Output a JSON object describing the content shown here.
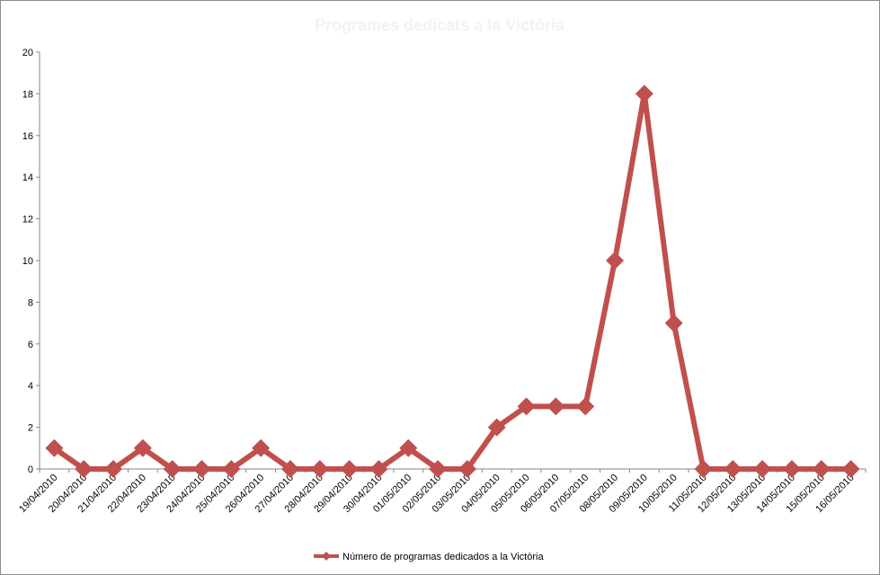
{
  "chart_data": {
    "type": "line",
    "title": "Programes dedicats a la Victòria",
    "title_color": "#f2f2f2",
    "categories": [
      "19/04/2010",
      "20/04/2010",
      "21/04/2010",
      "22/04/2010",
      "23/04/2010",
      "24/04/2010",
      "25/04/2010",
      "26/04/2010",
      "27/04/2010",
      "28/04/2010",
      "29/04/2010",
      "30/04/2010",
      "01/05/2010",
      "02/05/2010",
      "03/05/2010",
      "04/05/2010",
      "05/05/2010",
      "06/05/2010",
      "07/05/2010",
      "08/05/2010",
      "09/05/2010",
      "10/05/2010",
      "11/05/2010",
      "12/05/2010",
      "13/05/2010",
      "14/05/2010",
      "15/05/2010",
      "16/05/2010"
    ],
    "series": [
      {
        "name": "Número de programas  dedicados  a la Victòria",
        "color": "#c0504d",
        "marker": "diamond",
        "values": [
          1,
          0,
          0,
          1,
          0,
          0,
          0,
          1,
          0,
          0,
          0,
          0,
          1,
          0,
          0,
          2,
          3,
          3,
          3,
          10,
          18,
          7,
          0,
          0,
          0,
          0,
          0,
          0
        ]
      }
    ],
    "ylim": [
      0,
      20
    ],
    "yticks": [
      "0",
      "2",
      "4",
      "6",
      "8",
      "10",
      "12",
      "14",
      "16",
      "18",
      "20"
    ],
    "xlabel": "",
    "ylabel": "",
    "grid": false,
    "legend_position": "bottom"
  }
}
